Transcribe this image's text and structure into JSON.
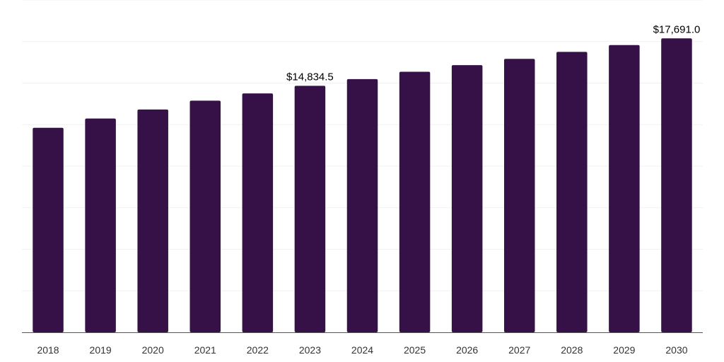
{
  "chart_data": {
    "type": "bar",
    "categories": [
      "2018",
      "2019",
      "2020",
      "2021",
      "2022",
      "2023",
      "2024",
      "2025",
      "2026",
      "2027",
      "2028",
      "2029",
      "2030"
    ],
    "values": [
      12310,
      12865,
      13410,
      13940,
      14380,
      14834.5,
      15240,
      15680,
      16080,
      16460,
      16880,
      17290,
      17691.0
    ],
    "data_labels": [
      {
        "index": 5,
        "text": "$14,834.5"
      },
      {
        "index": 12,
        "text": "$17,691.0"
      }
    ],
    "title": "",
    "xlabel": "",
    "ylabel": "",
    "ylim": [
      0,
      20000
    ],
    "grid": true,
    "bar_color": "#361148",
    "axis_color": "#555555",
    "grid_color": "#f1f1f1"
  }
}
